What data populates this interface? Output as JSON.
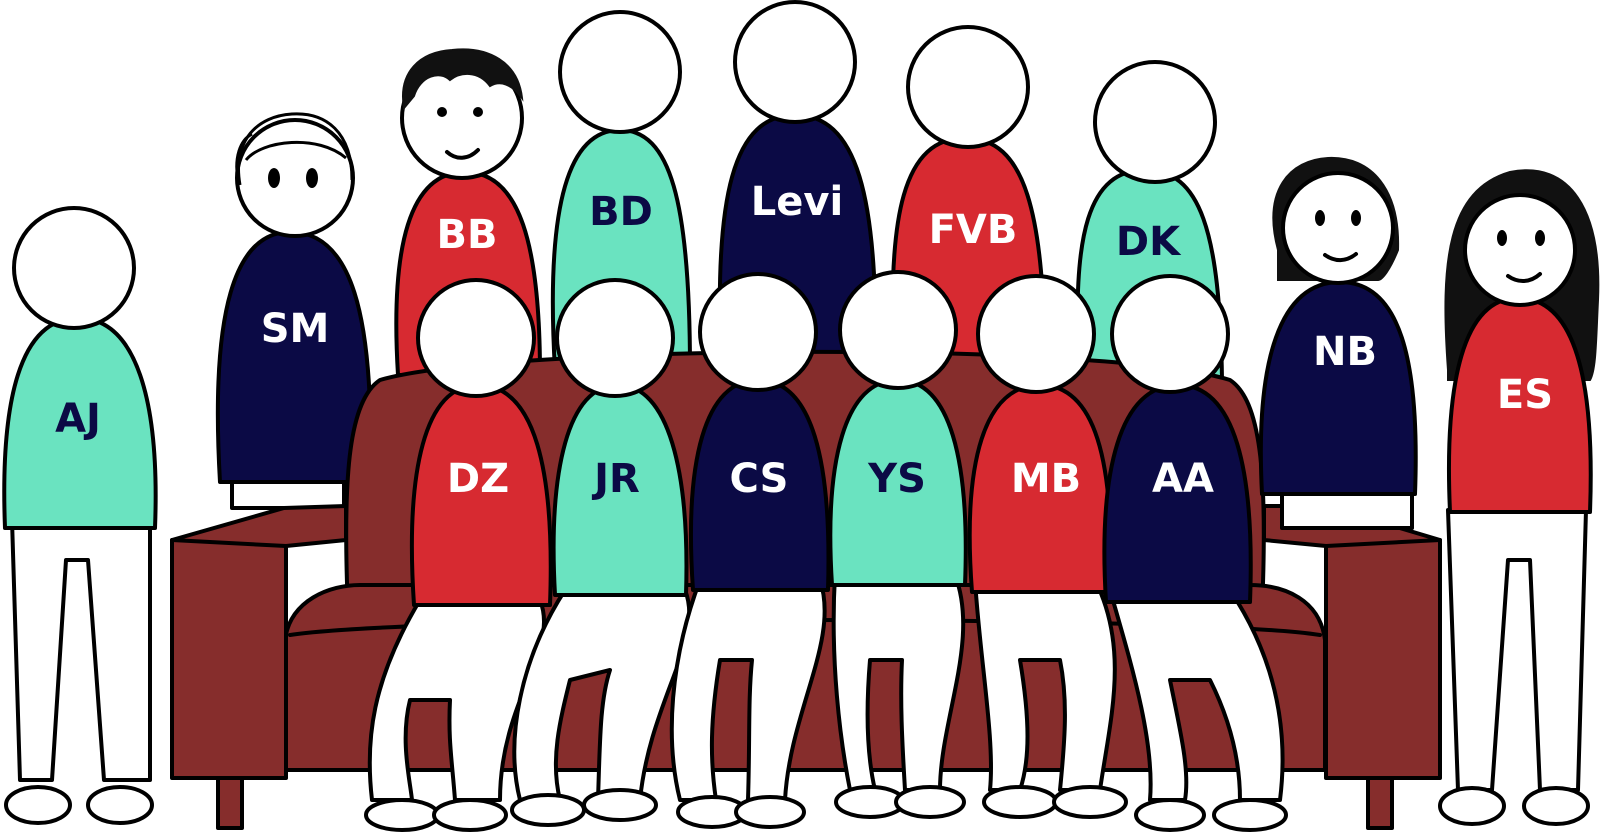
{
  "colors": {
    "teal": "#6ae3c0",
    "navy": "#0b0a45",
    "red": "#d72a31",
    "couch": "#862d2c",
    "white": "#ffffff",
    "hair": "#111111",
    "navy_text": "#0b0a45",
    "white_text": "#ffffff"
  },
  "people": [
    {
      "id": "bd",
      "label": "BD",
      "shirt": "teal",
      "row": "back"
    },
    {
      "id": "levi",
      "label": "Levi",
      "shirt": "navy",
      "row": "back"
    },
    {
      "id": "fvb",
      "label": "FVB",
      "shirt": "red",
      "row": "back"
    },
    {
      "id": "dk",
      "label": "DK",
      "shirt": "teal",
      "row": "back"
    },
    {
      "id": "bb",
      "label": "BB",
      "shirt": "red",
      "row": "back"
    },
    {
      "id": "sm",
      "label": "SM",
      "shirt": "navy",
      "row": "back"
    },
    {
      "id": "aj",
      "label": "AJ",
      "shirt": "teal",
      "row": "standing"
    },
    {
      "id": "nb",
      "label": "NB",
      "shirt": "navy",
      "row": "standing"
    },
    {
      "id": "es",
      "label": "ES",
      "shirt": "red",
      "row": "standing"
    },
    {
      "id": "dz",
      "label": "DZ",
      "shirt": "red",
      "row": "front"
    },
    {
      "id": "jr",
      "label": "JR",
      "shirt": "teal",
      "row": "front"
    },
    {
      "id": "cs",
      "label": "CS",
      "shirt": "navy",
      "row": "front"
    },
    {
      "id": "ys",
      "label": "YS",
      "shirt": "teal",
      "row": "front"
    },
    {
      "id": "mb",
      "label": "MB",
      "shirt": "red",
      "row": "front"
    },
    {
      "id": "aa",
      "label": "AA",
      "shirt": "navy",
      "row": "front"
    }
  ]
}
